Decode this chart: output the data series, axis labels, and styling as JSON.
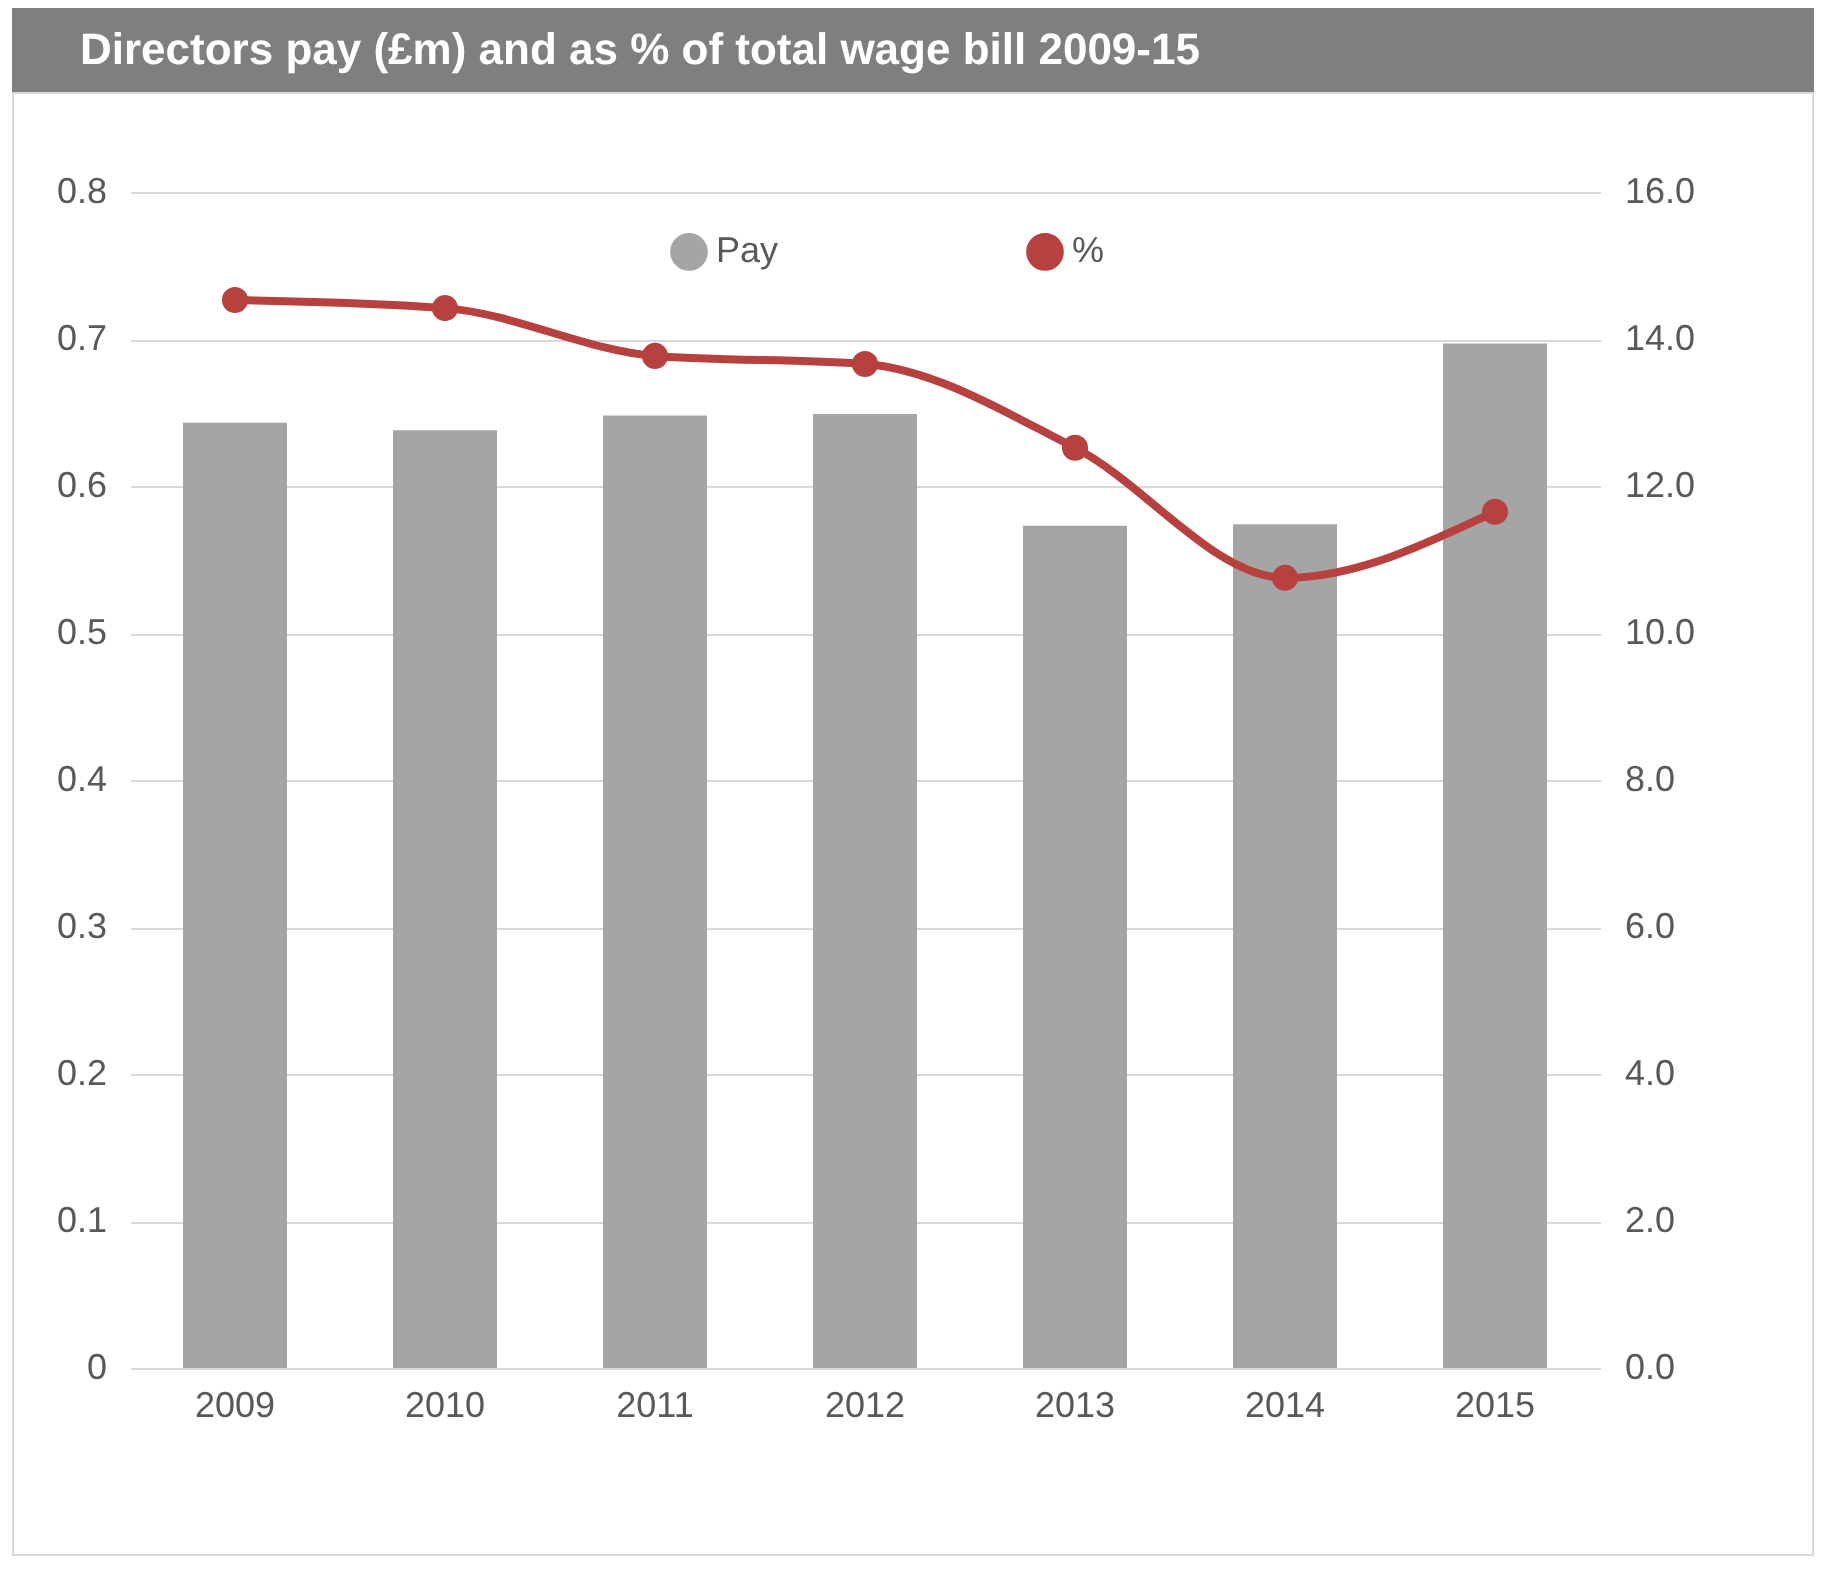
{
  "chart_data": {
    "type": "bar",
    "title": "Directors pay (£m) and as % of total wage bill 2009-15",
    "categories": [
      "2009",
      "2010",
      "2011",
      "2012",
      "2013",
      "2014",
      "2015"
    ],
    "series": [
      {
        "name": "Pay",
        "color": "#a5a5a5",
        "values": [
          0.643,
          0.638,
          0.648,
          0.649,
          0.573,
          0.574,
          0.697
        ]
      },
      {
        "name": "%",
        "type": "line",
        "axis": "y2",
        "color": "#b7413e",
        "marker": "circle",
        "values": [
          14.53,
          14.42,
          13.77,
          13.66,
          12.52,
          10.75,
          11.65
        ]
      }
    ],
    "ylim": [
      0,
      0.8
    ],
    "yticks": [
      0,
      0.1,
      0.2,
      0.3,
      0.4,
      0.5,
      0.6,
      0.7,
      0.8
    ],
    "y2lim": [
      0,
      16
    ],
    "y2ticks": [
      {
        "value": 0,
        "label": "0.0"
      },
      {
        "value": 2,
        "label": "2.0"
      },
      {
        "value": 4,
        "label": "4.0"
      },
      {
        "value": 6,
        "label": "6.0"
      },
      {
        "value": 8,
        "label": "8.0"
      },
      {
        "value": 10,
        "label": "10.0"
      },
      {
        "value": 12,
        "label": "12.0"
      },
      {
        "value": 14,
        "label": "14.0"
      },
      {
        "value": 16,
        "label": "16.0"
      }
    ],
    "grid": "y",
    "legend": "top"
  }
}
